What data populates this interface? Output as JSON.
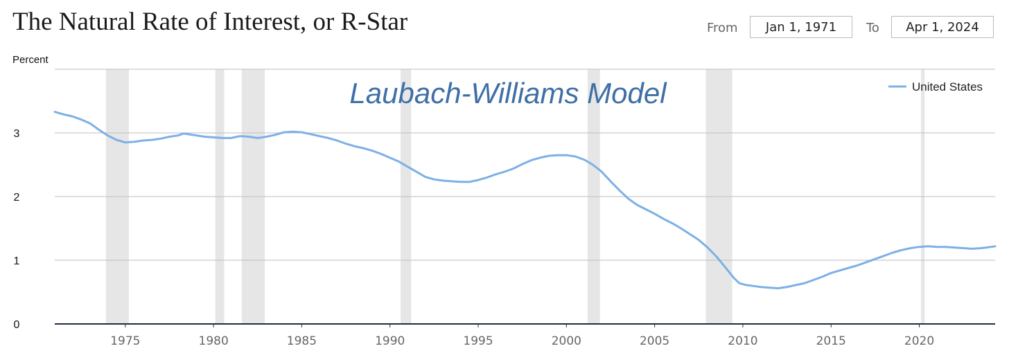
{
  "header": {
    "title": "The Natural Rate of Interest, or R-Star",
    "from_label": "From",
    "from_date": "Jan 1, 1971",
    "to_label": "To",
    "to_date": "Apr 1, 2024"
  },
  "chart_data": {
    "type": "line",
    "title": "The Natural Rate of Interest, or R-Star",
    "annotation": "Laubach-Williams Model",
    "ylabel": "Percent",
    "xlabel": "",
    "xlim": [
      1971,
      2024.3
    ],
    "ylim": [
      0,
      4
    ],
    "y_ticks": [
      0,
      1,
      2,
      3
    ],
    "x_ticks": [
      1975,
      1980,
      1985,
      1990,
      1995,
      2000,
      2005,
      2010,
      2015,
      2020
    ],
    "grid": true,
    "legend_position": "top-right",
    "colors": {
      "series": "#7cb0e6",
      "recession": "#e6e6e6",
      "axis": "#1f2a44",
      "grid": "#bdbdbd",
      "annotation": "#3f6fa6"
    },
    "recessions": [
      [
        1973.9,
        1975.2
      ],
      [
        1980.1,
        1980.6
      ],
      [
        1981.6,
        1982.9
      ],
      [
        1990.6,
        1991.2
      ],
      [
        2001.2,
        2001.9
      ],
      [
        2007.9,
        2009.4
      ],
      [
        2020.1,
        2020.3
      ]
    ],
    "series": [
      {
        "name": "United States",
        "points": [
          [
            1971.0,
            3.33
          ],
          [
            1971.5,
            3.29
          ],
          [
            1972.0,
            3.26
          ],
          [
            1972.5,
            3.21
          ],
          [
            1973.0,
            3.15
          ],
          [
            1973.5,
            3.05
          ],
          [
            1974.0,
            2.96
          ],
          [
            1974.5,
            2.89
          ],
          [
            1975.0,
            2.85
          ],
          [
            1975.5,
            2.86
          ],
          [
            1976.0,
            2.88
          ],
          [
            1976.5,
            2.89
          ],
          [
            1977.0,
            2.91
          ],
          [
            1977.5,
            2.94
          ],
          [
            1978.0,
            2.96
          ],
          [
            1978.3,
            2.99
          ],
          [
            1978.8,
            2.97
          ],
          [
            1979.5,
            2.94
          ],
          [
            1980.5,
            2.92
          ],
          [
            1981.0,
            2.92
          ],
          [
            1981.5,
            2.95
          ],
          [
            1982.0,
            2.94
          ],
          [
            1982.5,
            2.92
          ],
          [
            1983.0,
            2.94
          ],
          [
            1983.5,
            2.97
          ],
          [
            1984.0,
            3.01
          ],
          [
            1984.5,
            3.02
          ],
          [
            1985.0,
            3.01
          ],
          [
            1985.5,
            2.98
          ],
          [
            1986.0,
            2.95
          ],
          [
            1986.5,
            2.92
          ],
          [
            1987.0,
            2.88
          ],
          [
            1987.5,
            2.83
          ],
          [
            1988.0,
            2.79
          ],
          [
            1988.5,
            2.76
          ],
          [
            1989.0,
            2.72
          ],
          [
            1989.5,
            2.67
          ],
          [
            1990.0,
            2.61
          ],
          [
            1990.5,
            2.55
          ],
          [
            1991.0,
            2.47
          ],
          [
            1991.5,
            2.39
          ],
          [
            1992.0,
            2.31
          ],
          [
            1992.5,
            2.27
          ],
          [
            1993.0,
            2.25
          ],
          [
            1993.5,
            2.24
          ],
          [
            1994.0,
            2.23
          ],
          [
            1994.5,
            2.23
          ],
          [
            1995.0,
            2.26
          ],
          [
            1995.5,
            2.3
          ],
          [
            1996.0,
            2.35
          ],
          [
            1996.5,
            2.39
          ],
          [
            1997.0,
            2.44
          ],
          [
            1997.5,
            2.51
          ],
          [
            1998.0,
            2.57
          ],
          [
            1998.5,
            2.61
          ],
          [
            1999.0,
            2.64
          ],
          [
            1999.5,
            2.65
          ],
          [
            2000.0,
            2.65
          ],
          [
            2000.5,
            2.63
          ],
          [
            2001.0,
            2.58
          ],
          [
            2001.5,
            2.5
          ],
          [
            2002.0,
            2.39
          ],
          [
            2002.5,
            2.24
          ],
          [
            2003.0,
            2.1
          ],
          [
            2003.5,
            1.97
          ],
          [
            2004.0,
            1.87
          ],
          [
            2004.5,
            1.8
          ],
          [
            2005.0,
            1.73
          ],
          [
            2005.5,
            1.65
          ],
          [
            2006.0,
            1.58
          ],
          [
            2006.5,
            1.5
          ],
          [
            2007.0,
            1.41
          ],
          [
            2007.5,
            1.32
          ],
          [
            2008.0,
            1.2
          ],
          [
            2008.5,
            1.06
          ],
          [
            2009.0,
            0.89
          ],
          [
            2009.5,
            0.72
          ],
          [
            2009.8,
            0.64
          ],
          [
            2010.2,
            0.61
          ],
          [
            2010.5,
            0.6
          ],
          [
            2011.0,
            0.58
          ],
          [
            2011.5,
            0.57
          ],
          [
            2012.0,
            0.56
          ],
          [
            2012.5,
            0.58
          ],
          [
            2013.0,
            0.61
          ],
          [
            2013.5,
            0.64
          ],
          [
            2014.0,
            0.69
          ],
          [
            2014.5,
            0.74
          ],
          [
            2015.0,
            0.8
          ],
          [
            2015.5,
            0.84
          ],
          [
            2016.0,
            0.88
          ],
          [
            2016.5,
            0.92
          ],
          [
            2017.0,
            0.97
          ],
          [
            2017.5,
            1.02
          ],
          [
            2018.0,
            1.07
          ],
          [
            2018.5,
            1.12
          ],
          [
            2019.0,
            1.16
          ],
          [
            2019.5,
            1.19
          ],
          [
            2020.0,
            1.21
          ],
          [
            2020.5,
            1.22
          ],
          [
            2021.0,
            1.21
          ],
          [
            2021.5,
            1.21
          ],
          [
            2022.0,
            1.2
          ],
          [
            2022.5,
            1.19
          ],
          [
            2023.0,
            1.18
          ],
          [
            2023.5,
            1.19
          ],
          [
            2023.8,
            1.2
          ],
          [
            2024.3,
            1.22
          ]
        ]
      }
    ]
  }
}
